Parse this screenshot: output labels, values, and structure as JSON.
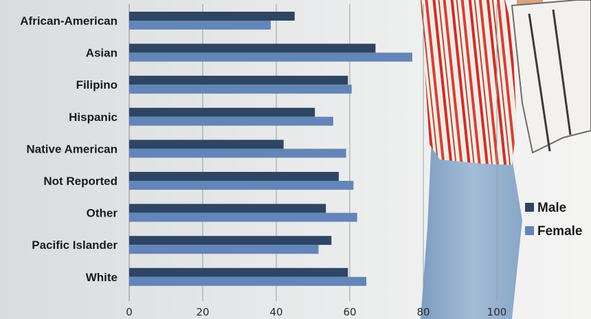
{
  "chart_data": {
    "type": "bar",
    "orientation": "horizontal",
    "categories": [
      "African-American",
      "Asian",
      "Filipino",
      "Hispanic",
      "Native American",
      "Not Reported",
      "Other",
      "Pacific Islander",
      "White"
    ],
    "series": [
      {
        "name": "Male",
        "color": "#2e4564",
        "values": [
          45,
          67,
          59.5,
          50.5,
          42,
          57,
          53.5,
          55,
          59.5
        ]
      },
      {
        "name": "Female",
        "color": "#6485b8",
        "values": [
          38.5,
          77,
          60.5,
          55.5,
          59,
          61,
          62,
          51.5,
          64.5
        ]
      }
    ],
    "xlim": [
      0,
      100
    ],
    "xticks": [
      "0",
      "20",
      "40",
      "60",
      "80",
      "100"
    ],
    "grid": true,
    "legend": "right",
    "title": "",
    "xlabel": "",
    "ylabel": ""
  }
}
